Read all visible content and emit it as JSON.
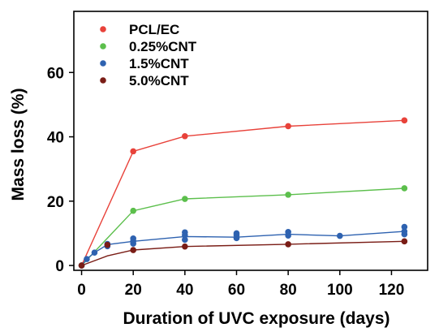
{
  "chart_data": {
    "type": "line",
    "xlabel": "Duration of UVC exposure (days)",
    "ylabel": "Mass loss (%)",
    "xlim": [
      -3,
      134
    ],
    "ylim": [
      -1.5,
      79
    ],
    "xticks": [
      0,
      20,
      40,
      60,
      80,
      100,
      120
    ],
    "yticks": [
      0,
      20,
      40,
      60
    ],
    "legend_position": "top-left",
    "series": [
      {
        "name": "PCL/EC",
        "color": "#e8423a",
        "line": [
          [
            0,
            0
          ],
          [
            20,
            35.5
          ],
          [
            40,
            40.2
          ],
          [
            80,
            43.3
          ],
          [
            125,
            45.1
          ]
        ],
        "points": [
          [
            0,
            0
          ],
          [
            20,
            35.5
          ],
          [
            40,
            40.2
          ],
          [
            80,
            43.3
          ],
          [
            125,
            45.1
          ]
        ]
      },
      {
        "name": "0.25%CNT",
        "color": "#5cbf4c",
        "line": [
          [
            0,
            0
          ],
          [
            20,
            17.0
          ],
          [
            40,
            20.7
          ],
          [
            80,
            22.0
          ],
          [
            125,
            24.0
          ]
        ],
        "points": [
          [
            0,
            0
          ],
          [
            20,
            17.0
          ],
          [
            40,
            20.7
          ],
          [
            80,
            22.0
          ],
          [
            125,
            24.0
          ]
        ]
      },
      {
        "name": "1.5%CNT",
        "color": "#2e62b0",
        "line": [
          [
            0,
            0
          ],
          [
            2,
            2.0
          ],
          [
            5,
            4.0
          ],
          [
            10,
            6.5
          ],
          [
            20,
            7.5
          ],
          [
            40,
            9.0
          ],
          [
            60,
            8.8
          ],
          [
            80,
            9.7
          ],
          [
            100,
            9.2
          ],
          [
            125,
            10.6
          ]
        ],
        "points": [
          [
            0,
            0
          ],
          [
            2,
            2.0
          ],
          [
            5,
            4.0
          ],
          [
            10,
            6.0
          ],
          [
            10,
            6.7
          ],
          [
            20,
            6.8
          ],
          [
            20,
            7.6
          ],
          [
            20,
            8.4
          ],
          [
            40,
            8.0
          ],
          [
            40,
            9.4
          ],
          [
            40,
            10.3
          ],
          [
            60,
            8.5
          ],
          [
            60,
            9.4
          ],
          [
            60,
            10.0
          ],
          [
            80,
            9.3
          ],
          [
            80,
            10.4
          ],
          [
            100,
            9.2
          ],
          [
            125,
            9.7
          ],
          [
            125,
            10.6
          ],
          [
            125,
            12.0
          ]
        ]
      },
      {
        "name": "5.0%CNT",
        "color": "#7a1d16",
        "line": [
          [
            0,
            0
          ],
          [
            10,
            3.0
          ],
          [
            20,
            4.8
          ],
          [
            40,
            5.9
          ],
          [
            80,
            6.6
          ],
          [
            125,
            7.5
          ]
        ],
        "points": [
          [
            0,
            0
          ],
          [
            10,
            6.4
          ],
          [
            20,
            4.8
          ],
          [
            40,
            5.9
          ],
          [
            80,
            6.6
          ],
          [
            125,
            7.5
          ]
        ]
      }
    ]
  }
}
